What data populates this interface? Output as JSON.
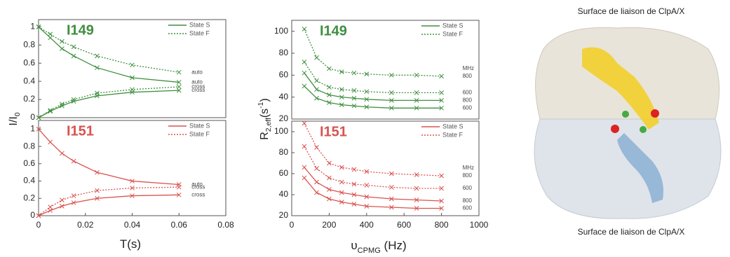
{
  "chart_data": [
    {
      "type": "line",
      "title": "I149",
      "color": "#3f8f3f",
      "legend": [
        {
          "name": "State S",
          "dashed": false
        },
        {
          "name": "State F",
          "dashed": true
        }
      ],
      "y_label": [
        {
          "text": "I/I"
        },
        {
          "text": "0",
          "shift": "sub"
        }
      ],
      "x": [
        0,
        0.005,
        0.01,
        0.015,
        0.025,
        0.04,
        0.06
      ],
      "series": [
        {
          "label": "auto",
          "state": 1,
          "values": [
            1,
            0.92,
            0.84,
            0.78,
            0.68,
            0.58,
            0.5
          ]
        },
        {
          "label": "auto",
          "state": 0,
          "values": [
            1,
            0.88,
            0.76,
            0.68,
            0.55,
            0.44,
            0.39
          ]
        },
        {
          "label": "cross",
          "state": 1,
          "values": [
            0,
            0.08,
            0.15,
            0.2,
            0.27,
            0.31,
            0.34
          ]
        },
        {
          "label": "cross",
          "state": 0,
          "values": [
            0,
            0.07,
            0.13,
            0.18,
            0.24,
            0.28,
            0.3
          ]
        }
      ],
      "xlim": [
        0,
        0.08
      ],
      "ylim": [
        0,
        1.08
      ],
      "yticks": [
        0,
        0.2,
        0.4,
        0.6,
        0.8,
        1
      ]
    },
    {
      "type": "line",
      "title": "I151",
      "color": "#d9534f",
      "legend": [
        {
          "name": "State S",
          "dashed": false
        },
        {
          "name": "State F",
          "dashed": true
        }
      ],
      "x_label": [
        {
          "text": "T(s)"
        }
      ],
      "x": [
        0,
        0.005,
        0.01,
        0.015,
        0.025,
        0.04,
        0.06
      ],
      "series": [
        {
          "label": "auto",
          "state": 0,
          "values": [
            1,
            0.85,
            0.72,
            0.63,
            0.5,
            0.4,
            0.36
          ]
        },
        {
          "label": "cross",
          "state": 1,
          "values": [
            0,
            0.1,
            0.18,
            0.23,
            0.29,
            0.32,
            0.33
          ]
        },
        {
          "label": "cross",
          "state": 0,
          "values": [
            0,
            0.06,
            0.11,
            0.15,
            0.2,
            0.23,
            0.24
          ]
        }
      ],
      "xlim": [
        0,
        0.08
      ],
      "xticks": [
        0,
        0.02,
        0.04,
        0.06,
        0.08
      ],
      "ylim": [
        0,
        1.1
      ],
      "yticks": [
        0,
        0.2,
        0.4,
        0.6,
        0.8,
        1
      ]
    },
    {
      "type": "line",
      "title": "I149",
      "color": "#3f8f3f",
      "annotation": "MHz",
      "legend": [
        {
          "name": "State S",
          "dashed": false
        },
        {
          "name": "State F",
          "dashed": true
        }
      ],
      "y_label": [
        {
          "text": "R"
        },
        {
          "text": "2,eff",
          "shift": "sub"
        },
        {
          "text": "(s"
        },
        {
          "text": "-1",
          "shift": "super"
        },
        {
          "text": ")"
        }
      ],
      "x": [
        67,
        133,
        200,
        267,
        333,
        400,
        533,
        667,
        800
      ],
      "series": [
        {
          "label": 800,
          "state": 1,
          "values": [
            102,
            76,
            66,
            63,
            62,
            61,
            60,
            60,
            59
          ]
        },
        {
          "label": 600,
          "state": 1,
          "values": [
            72,
            55,
            49,
            47,
            46,
            45,
            44,
            44,
            44
          ]
        },
        {
          "label": 800,
          "state": 0,
          "values": [
            62,
            47,
            42,
            40,
            39,
            38,
            37,
            37,
            37
          ]
        },
        {
          "label": 600,
          "state": 0,
          "values": [
            50,
            39,
            35,
            33,
            32,
            31,
            30,
            30,
            30
          ]
        }
      ],
      "xlim": [
        0,
        1000
      ],
      "ylim": [
        20,
        110
      ],
      "yticks": [
        20,
        40,
        60,
        80,
        100
      ]
    },
    {
      "type": "line",
      "title": "I151",
      "color": "#d9534f",
      "annotation": "MHz",
      "legend": [
        {
          "name": "State S",
          "dashed": false
        },
        {
          "name": "State F",
          "dashed": true
        }
      ],
      "x_label": [
        {
          "text": "υ"
        },
        {
          "text": "CPMG",
          "shift": "sub"
        },
        {
          "text": " (Hz)"
        }
      ],
      "x": [
        67,
        133,
        200,
        267,
        333,
        400,
        533,
        667,
        800
      ],
      "series": [
        {
          "label": 800,
          "state": 1,
          "values": [
            108,
            85,
            70,
            66,
            64,
            62,
            60,
            59,
            58
          ]
        },
        {
          "label": 600,
          "state": 1,
          "values": [
            86,
            65,
            56,
            52,
            50,
            49,
            47,
            46,
            46
          ]
        },
        {
          "label": 800,
          "state": 0,
          "values": [
            66,
            52,
            45,
            42,
            40,
            38,
            36,
            35,
            34
          ]
        },
        {
          "label": 600,
          "state": 0,
          "values": [
            56,
            42,
            36,
            33,
            31,
            29,
            28,
            27,
            27
          ]
        }
      ],
      "xlim": [
        0,
        1000
      ],
      "xticks": [
        0,
        200,
        400,
        600,
        800,
        1000
      ],
      "ylim": [
        20,
        110
      ],
      "yticks": [
        20,
        40,
        60,
        80,
        100
      ]
    }
  ],
  "image": {
    "captions": [
      "Surface de liaison de ClpA/X",
      "Surface de liaison de ClpA/X"
    ]
  }
}
